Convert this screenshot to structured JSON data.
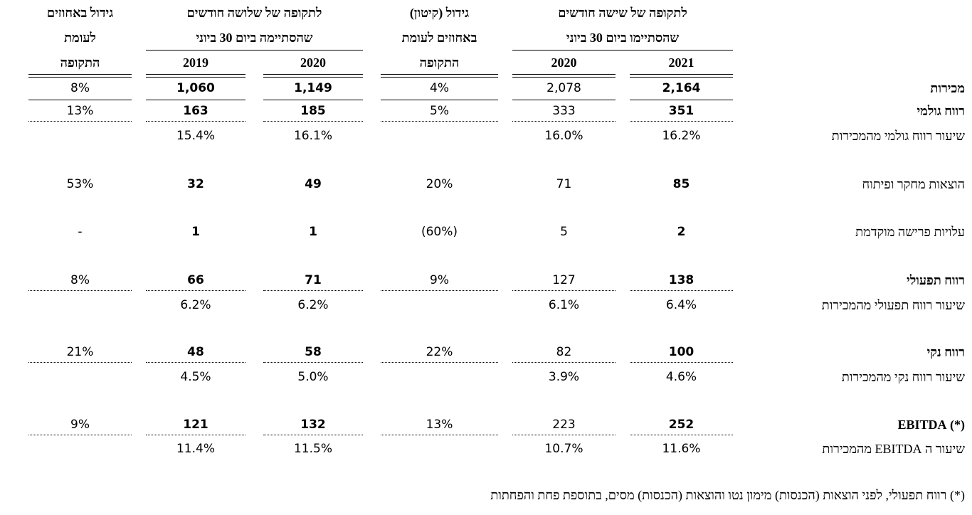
{
  "header": {
    "groups": [
      {
        "lines": [
          "לתקופה של שישה חודשים",
          "שהסתיימו ביום 30 ביוני"
        ],
        "years": [
          "2021",
          "2020"
        ]
      },
      {
        "lines": [
          "גידול (קיטון)",
          "באחוזים לעומת",
          "התקופה"
        ]
      },
      {
        "lines": [
          "לתקופה של שלושה חודשים",
          "שהסתיימה ביום 30 ביוני"
        ],
        "years": [
          "2020",
          "2019"
        ]
      },
      {
        "lines": [
          "גידול באחוזים",
          "לעומת",
          "התקופה"
        ]
      }
    ]
  },
  "table": {
    "rows": [
      {
        "label": "מכירות",
        "values": [
          "2,164",
          "2,078",
          "4%",
          "1,149",
          "1,060",
          "8%"
        ]
      },
      {
        "label": "רווח גולמי",
        "values": [
          "351",
          "333",
          "5%",
          "185",
          "163",
          "13%"
        ]
      },
      {
        "label": "שיעור רווח גולמי מהמכירות",
        "values": [
          "16.2%",
          "16.0%",
          null,
          "16.1%",
          "15.4%",
          null
        ]
      },
      {
        "label": "הוצאות מחקר ופיתוח",
        "values": [
          "85",
          "71",
          "20%",
          "49",
          "32",
          "53%"
        ]
      },
      {
        "label": "עלויות פרישה מוקדמת",
        "values": [
          "2",
          "5",
          "(60%)",
          "1",
          "1",
          "-"
        ]
      },
      {
        "label": "רווח תפעולי",
        "values": [
          "138",
          "127",
          "9%",
          "71",
          "66",
          "8%"
        ]
      },
      {
        "label": "שיעור רווח תפעולי מהמכירות",
        "values": [
          "6.4%",
          "6.1%",
          null,
          "6.2%",
          "6.2%",
          null
        ]
      },
      {
        "label": "רווח נקי",
        "values": [
          "100",
          "82",
          "22%",
          "58",
          "48",
          "21%"
        ]
      },
      {
        "label": "שיעור רווח נקי מהמכירות",
        "values": [
          "4.6%",
          "3.9%",
          null,
          "5.0%",
          "4.5%",
          null
        ]
      },
      {
        "label": "(*) EBITDA",
        "values": [
          "252",
          "223",
          "13%",
          "132",
          "121",
          "9%"
        ]
      },
      {
        "label": "שיעור ה EBITDA מהמכירות",
        "values": [
          "11.6%",
          "10.7%",
          null,
          "11.5%",
          "11.4%",
          null
        ]
      }
    ]
  },
  "footnote": "(*) רווח תפעולי, לפני הוצאות (הכנסות) מימון נטו והוצאות (הכנסות) מסים, בתוספת פחת והפחתות"
}
